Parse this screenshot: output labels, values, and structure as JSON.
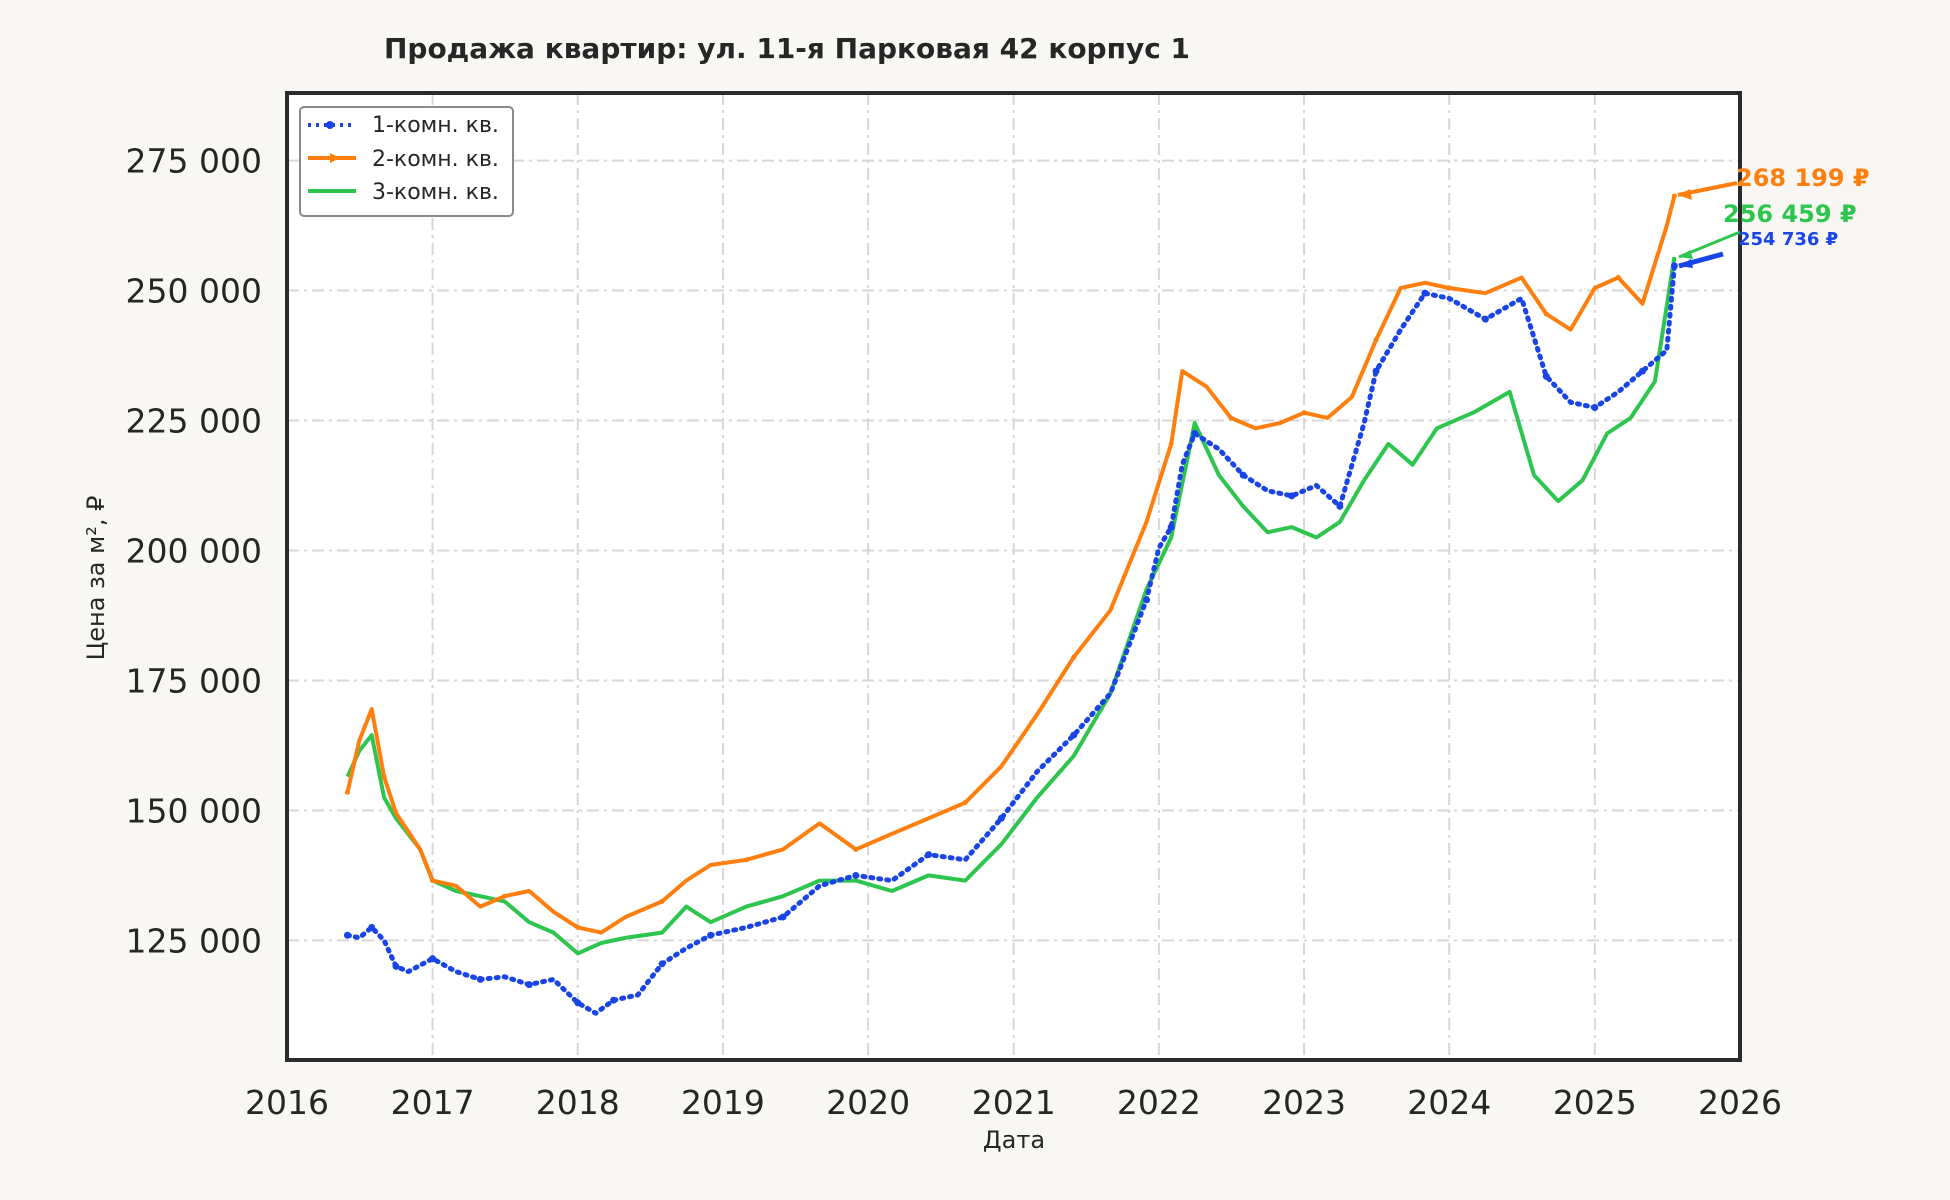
{
  "chart_data": {
    "type": "line",
    "title": "Продажа квартир: ул. 11-я Парковая 42 корпус 1",
    "xlabel": "Дата",
    "ylabel": "Цена за м², ₽",
    "x_ticks": [
      "2016",
      "2017",
      "2018",
      "2019",
      "2020",
      "2021",
      "2022",
      "2023",
      "2024",
      "2025",
      "2026"
    ],
    "y_ticks": [
      "125 000",
      "150 000",
      "175 000",
      "200 000",
      "225 000",
      "250 000",
      "275 000"
    ],
    "xlim": [
      "2016-01-01",
      "2026-01-01"
    ],
    "ylim": [
      102000,
      288000
    ],
    "grid": true,
    "legend_position": "top-left",
    "series": [
      {
        "name": "1-комн. кв.",
        "color": "#1a45e6",
        "style": "dotted",
        "end_label": "254 736 ₽",
        "points": [
          [
            "2016-06-01",
            126000
          ],
          [
            "2016-07-01",
            125500
          ],
          [
            "2016-08-01",
            127500
          ],
          [
            "2016-09-01",
            125000
          ],
          [
            "2016-10-01",
            120000
          ],
          [
            "2016-11-01",
            119000
          ],
          [
            "2017-01-01",
            121500
          ],
          [
            "2017-03-01",
            119000
          ],
          [
            "2017-05-01",
            117500
          ],
          [
            "2017-07-01",
            118000
          ],
          [
            "2017-09-01",
            116500
          ],
          [
            "2017-11-01",
            117500
          ],
          [
            "2018-01-01",
            113000
          ],
          [
            "2018-02-15",
            111000
          ],
          [
            "2018-04-01",
            113500
          ],
          [
            "2018-06-01",
            114500
          ],
          [
            "2018-08-01",
            120500
          ],
          [
            "2018-10-01",
            123500
          ],
          [
            "2018-12-01",
            126000
          ],
          [
            "2019-03-01",
            127500
          ],
          [
            "2019-06-01",
            129500
          ],
          [
            "2019-09-01",
            135500
          ],
          [
            "2019-12-01",
            137500
          ],
          [
            "2020-03-01",
            136500
          ],
          [
            "2020-06-01",
            141500
          ],
          [
            "2020-09-01",
            140500
          ],
          [
            "2020-12-01",
            148500
          ],
          [
            "2021-03-01",
            157500
          ],
          [
            "2021-06-01",
            164500
          ],
          [
            "2021-09-01",
            172500
          ],
          [
            "2021-12-01",
            190500
          ],
          [
            "2022-01-01",
            200500
          ],
          [
            "2022-02-01",
            204500
          ],
          [
            "2022-03-01",
            216500
          ],
          [
            "2022-04-01",
            222500
          ],
          [
            "2022-06-01",
            219500
          ],
          [
            "2022-08-01",
            214500
          ],
          [
            "2022-10-01",
            211500
          ],
          [
            "2022-12-01",
            210500
          ],
          [
            "2023-02-01",
            212500
          ],
          [
            "2023-04-01",
            208500
          ],
          [
            "2023-06-01",
            224500
          ],
          [
            "2023-07-01",
            234500
          ],
          [
            "2023-09-01",
            242500
          ],
          [
            "2023-11-01",
            249500
          ],
          [
            "2024-01-01",
            248500
          ],
          [
            "2024-04-01",
            244500
          ],
          [
            "2024-07-01",
            248500
          ],
          [
            "2024-09-01",
            233500
          ],
          [
            "2024-11-01",
            228500
          ],
          [
            "2025-01-01",
            227500
          ],
          [
            "2025-03-01",
            230500
          ],
          [
            "2025-05-01",
            234500
          ],
          [
            "2025-07-01",
            238500
          ],
          [
            "2025-07-20",
            254736
          ]
        ]
      },
      {
        "name": "2-комн. кв.",
        "color": "#ff7f0e",
        "style": "solid-marker",
        "end_label": "268 199 ₽",
        "points": [
          [
            "2016-06-01",
            153500
          ],
          [
            "2016-07-01",
            163500
          ],
          [
            "2016-08-01",
            169500
          ],
          [
            "2016-09-01",
            156500
          ],
          [
            "2016-10-01",
            149500
          ],
          [
            "2016-12-01",
            142500
          ],
          [
            "2017-01-01",
            136500
          ],
          [
            "2017-03-01",
            135500
          ],
          [
            "2017-05-01",
            131500
          ],
          [
            "2017-07-01",
            133500
          ],
          [
            "2017-09-01",
            134500
          ],
          [
            "2017-11-01",
            130500
          ],
          [
            "2018-01-01",
            127500
          ],
          [
            "2018-03-01",
            126500
          ],
          [
            "2018-05-01",
            129500
          ],
          [
            "2018-08-01",
            132500
          ],
          [
            "2018-10-01",
            136500
          ],
          [
            "2018-12-01",
            139500
          ],
          [
            "2019-03-01",
            140500
          ],
          [
            "2019-06-01",
            142500
          ],
          [
            "2019-09-01",
            147500
          ],
          [
            "2019-12-01",
            142500
          ],
          [
            "2020-03-01",
            145500
          ],
          [
            "2020-06-01",
            148500
          ],
          [
            "2020-09-01",
            151500
          ],
          [
            "2020-12-01",
            158500
          ],
          [
            "2021-03-01",
            168500
          ],
          [
            "2021-06-01",
            179500
          ],
          [
            "2021-09-01",
            188500
          ],
          [
            "2021-12-01",
            205500
          ],
          [
            "2022-02-01",
            220500
          ],
          [
            "2022-03-01",
            234500
          ],
          [
            "2022-05-01",
            231500
          ],
          [
            "2022-07-01",
            225500
          ],
          [
            "2022-09-01",
            223500
          ],
          [
            "2022-11-01",
            224500
          ],
          [
            "2023-01-01",
            226500
          ],
          [
            "2023-03-01",
            225500
          ],
          [
            "2023-05-01",
            229500
          ],
          [
            "2023-07-01",
            240500
          ],
          [
            "2023-09-01",
            250500
          ],
          [
            "2023-11-01",
            251500
          ],
          [
            "2024-01-01",
            250500
          ],
          [
            "2024-04-01",
            249500
          ],
          [
            "2024-07-01",
            252500
          ],
          [
            "2024-09-01",
            245500
          ],
          [
            "2024-11-01",
            242500
          ],
          [
            "2025-01-01",
            250500
          ],
          [
            "2025-03-01",
            252500
          ],
          [
            "2025-05-01",
            247500
          ],
          [
            "2025-07-01",
            262500
          ],
          [
            "2025-07-20",
            268199
          ]
        ]
      },
      {
        "name": "3-комн. кв.",
        "color": "#2ec54f",
        "style": "solid",
        "end_label": "256 459 ₽",
        "points": [
          [
            "2016-06-01",
            156500
          ],
          [
            "2016-07-01",
            161500
          ],
          [
            "2016-08-01",
            164500
          ],
          [
            "2016-09-01",
            152500
          ],
          [
            "2016-10-01",
            148500
          ],
          [
            "2016-12-01",
            142500
          ],
          [
            "2017-01-01",
            136500
          ],
          [
            "2017-03-01",
            134500
          ],
          [
            "2017-05-01",
            133500
          ],
          [
            "2017-07-01",
            132500
          ],
          [
            "2017-09-01",
            128500
          ],
          [
            "2017-11-01",
            126500
          ],
          [
            "2018-01-01",
            122500
          ],
          [
            "2018-03-01",
            124500
          ],
          [
            "2018-05-01",
            125500
          ],
          [
            "2018-08-01",
            126500
          ],
          [
            "2018-10-01",
            131500
          ],
          [
            "2018-12-01",
            128500
          ],
          [
            "2019-03-01",
            131500
          ],
          [
            "2019-06-01",
            133500
          ],
          [
            "2019-09-01",
            136500
          ],
          [
            "2019-12-01",
            136500
          ],
          [
            "2020-03-01",
            134500
          ],
          [
            "2020-06-01",
            137500
          ],
          [
            "2020-09-01",
            136500
          ],
          [
            "2020-12-01",
            143500
          ],
          [
            "2021-03-01",
            152500
          ],
          [
            "2021-06-01",
            160500
          ],
          [
            "2021-09-01",
            172500
          ],
          [
            "2021-12-01",
            192500
          ],
          [
            "2022-02-01",
            202500
          ],
          [
            "2022-04-01",
            224500
          ],
          [
            "2022-06-01",
            214500
          ],
          [
            "2022-08-01",
            208500
          ],
          [
            "2022-10-01",
            203500
          ],
          [
            "2022-12-01",
            204500
          ],
          [
            "2023-02-01",
            202500
          ],
          [
            "2023-04-01",
            205500
          ],
          [
            "2023-06-01",
            213500
          ],
          [
            "2023-08-01",
            220500
          ],
          [
            "2023-10-01",
            216500
          ],
          [
            "2023-12-01",
            223500
          ],
          [
            "2024-03-01",
            226500
          ],
          [
            "2024-06-01",
            230500
          ],
          [
            "2024-08-01",
            214500
          ],
          [
            "2024-10-01",
            209500
          ],
          [
            "2024-12-01",
            213500
          ],
          [
            "2025-02-01",
            222500
          ],
          [
            "2025-04-01",
            225500
          ],
          [
            "2025-06-01",
            232500
          ],
          [
            "2025-07-20",
            256459
          ]
        ]
      }
    ]
  }
}
